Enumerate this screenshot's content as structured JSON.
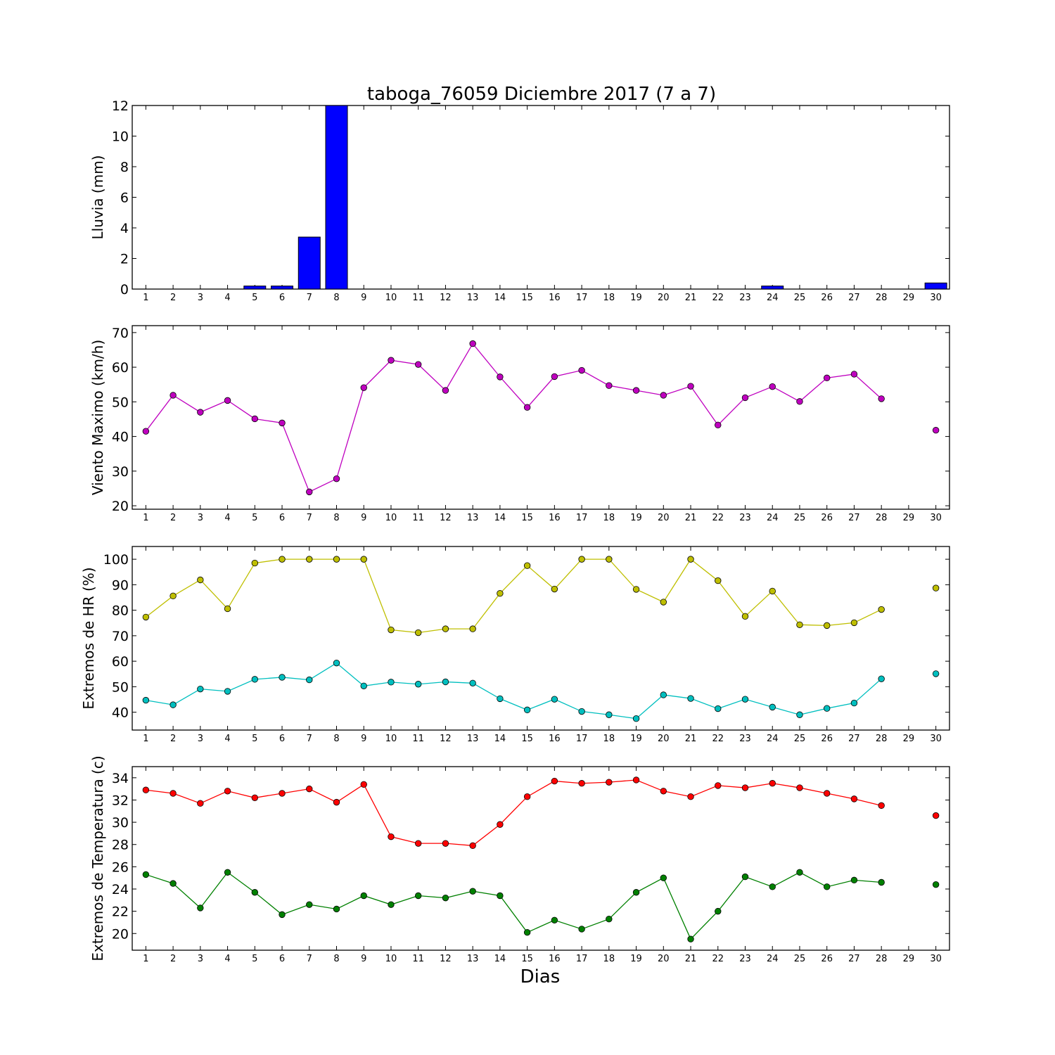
{
  "title": "taboga_76059 Diciembre 2017  (7 a 7)",
  "xlabel": "Dias",
  "chart_data": [
    {
      "type": "bar",
      "ylabel": "Lluvia (mm)",
      "x": [
        1,
        2,
        3,
        4,
        5,
        6,
        7,
        8,
        9,
        10,
        11,
        12,
        13,
        14,
        15,
        16,
        17,
        18,
        19,
        20,
        21,
        22,
        23,
        24,
        25,
        26,
        27,
        28,
        29,
        30
      ],
      "xticks": [
        1,
        2,
        3,
        4,
        5,
        6,
        7,
        8,
        9,
        10,
        11,
        12,
        13,
        14,
        15,
        16,
        17,
        18,
        19,
        20,
        21,
        22,
        23,
        24,
        25,
        26,
        27,
        28,
        29,
        30
      ],
      "ylim": [
        0,
        12
      ],
      "yticks": [
        0,
        2,
        4,
        6,
        8,
        10,
        12
      ],
      "series": [
        {
          "color": "#0000ff",
          "values": [
            0,
            0,
            0,
            0,
            0.2,
            0.2,
            3.4,
            12.0,
            0,
            0,
            0,
            0,
            0,
            0,
            0,
            0,
            0,
            0,
            0,
            0,
            0,
            0,
            0,
            0.2,
            0,
            0,
            0,
            0,
            null,
            0.4
          ]
        }
      ]
    },
    {
      "type": "line",
      "ylabel": "Viento Maximo (km/h)",
      "x": [
        1,
        2,
        3,
        4,
        5,
        6,
        7,
        8,
        9,
        10,
        11,
        12,
        13,
        14,
        15,
        16,
        17,
        18,
        19,
        20,
        21,
        22,
        23,
        24,
        25,
        26,
        27,
        28,
        29,
        30
      ],
      "xticks": [
        1,
        2,
        3,
        4,
        5,
        6,
        7,
        8,
        9,
        10,
        11,
        12,
        13,
        14,
        15,
        16,
        17,
        18,
        19,
        20,
        21,
        22,
        23,
        24,
        25,
        26,
        27,
        28,
        29,
        30
      ],
      "ylim": [
        19,
        72
      ],
      "yticks": [
        20,
        30,
        40,
        50,
        60,
        70
      ],
      "series": [
        {
          "color": "#bf00bf",
          "values": [
            41.5,
            51.9,
            47.0,
            50.4,
            45.1,
            43.9,
            24.0,
            27.8,
            54.1,
            62.0,
            60.8,
            53.3,
            66.8,
            57.2,
            48.4,
            57.3,
            59.1,
            54.7,
            53.3,
            51.9,
            54.5,
            43.3,
            51.2,
            54.4,
            50.1,
            56.9,
            58.0,
            50.9,
            null,
            41.8
          ]
        }
      ]
    },
    {
      "type": "line",
      "ylabel": "Extremos de HR (%)",
      "x": [
        1,
        2,
        3,
        4,
        5,
        6,
        7,
        8,
        9,
        10,
        11,
        12,
        13,
        14,
        15,
        16,
        17,
        18,
        19,
        20,
        21,
        22,
        23,
        24,
        25,
        26,
        27,
        28,
        29,
        30
      ],
      "xticks": [
        1,
        2,
        3,
        4,
        5,
        6,
        7,
        8,
        9,
        10,
        11,
        12,
        13,
        14,
        15,
        16,
        17,
        18,
        19,
        20,
        21,
        22,
        23,
        24,
        25,
        26,
        27,
        28,
        29,
        30
      ],
      "ylim": [
        33,
        105
      ],
      "yticks": [
        40,
        50,
        60,
        70,
        80,
        90,
        100
      ],
      "series": [
        {
          "color": "#bfbf00",
          "values": [
            77.3,
            85.6,
            91.9,
            80.6,
            98.5,
            100,
            100,
            100,
            100,
            72.3,
            71.2,
            72.7,
            72.7,
            86.6,
            97.5,
            88.3,
            100,
            100,
            88.2,
            83.2,
            100,
            91.6,
            77.6,
            87.5,
            74.3,
            74.0,
            75.1,
            80.3,
            null,
            88.7
          ]
        },
        {
          "color": "#00bfbf",
          "values": [
            44.7,
            42.9,
            49.1,
            48.2,
            52.9,
            53.7,
            52.7,
            59.3,
            50.3,
            51.8,
            51.0,
            51.9,
            51.4,
            45.3,
            40.9,
            45.1,
            40.3,
            39.0,
            37.5,
            46.8,
            45.4,
            41.4,
            45.1,
            42.0,
            39.0,
            41.5,
            43.6,
            53.1,
            null,
            55.1
          ]
        }
      ]
    },
    {
      "type": "line",
      "ylabel": "Extremos de Temperatura (c)",
      "x": [
        1,
        2,
        3,
        4,
        5,
        6,
        7,
        8,
        9,
        10,
        11,
        12,
        13,
        14,
        15,
        16,
        17,
        18,
        19,
        20,
        21,
        22,
        23,
        24,
        25,
        26,
        27,
        28,
        29,
        30
      ],
      "xticks": [
        1,
        2,
        3,
        4,
        5,
        6,
        7,
        8,
        9,
        10,
        11,
        12,
        13,
        14,
        15,
        16,
        17,
        18,
        19,
        20,
        21,
        22,
        23,
        24,
        25,
        26,
        27,
        28,
        29,
        30
      ],
      "ylim": [
        18.5,
        35
      ],
      "yticks": [
        20,
        22,
        24,
        26,
        28,
        30,
        32,
        34
      ],
      "series": [
        {
          "color": "#ff0000",
          "values": [
            32.9,
            32.6,
            31.7,
            32.8,
            32.2,
            32.6,
            33.0,
            31.8,
            33.4,
            28.7,
            28.1,
            28.1,
            27.9,
            29.8,
            32.3,
            33.7,
            33.5,
            33.6,
            33.8,
            32.8,
            32.3,
            33.3,
            33.1,
            33.5,
            33.1,
            32.6,
            32.1,
            31.5,
            null,
            30.6
          ]
        },
        {
          "color": "#008000",
          "values": [
            25.3,
            24.5,
            22.3,
            25.5,
            23.7,
            21.7,
            22.6,
            22.2,
            23.4,
            22.6,
            23.4,
            23.2,
            23.8,
            23.4,
            20.1,
            21.2,
            20.4,
            21.3,
            23.7,
            25.0,
            19.5,
            22.0,
            25.1,
            24.2,
            25.5,
            24.2,
            24.8,
            24.6,
            null,
            24.4
          ]
        }
      ]
    }
  ]
}
